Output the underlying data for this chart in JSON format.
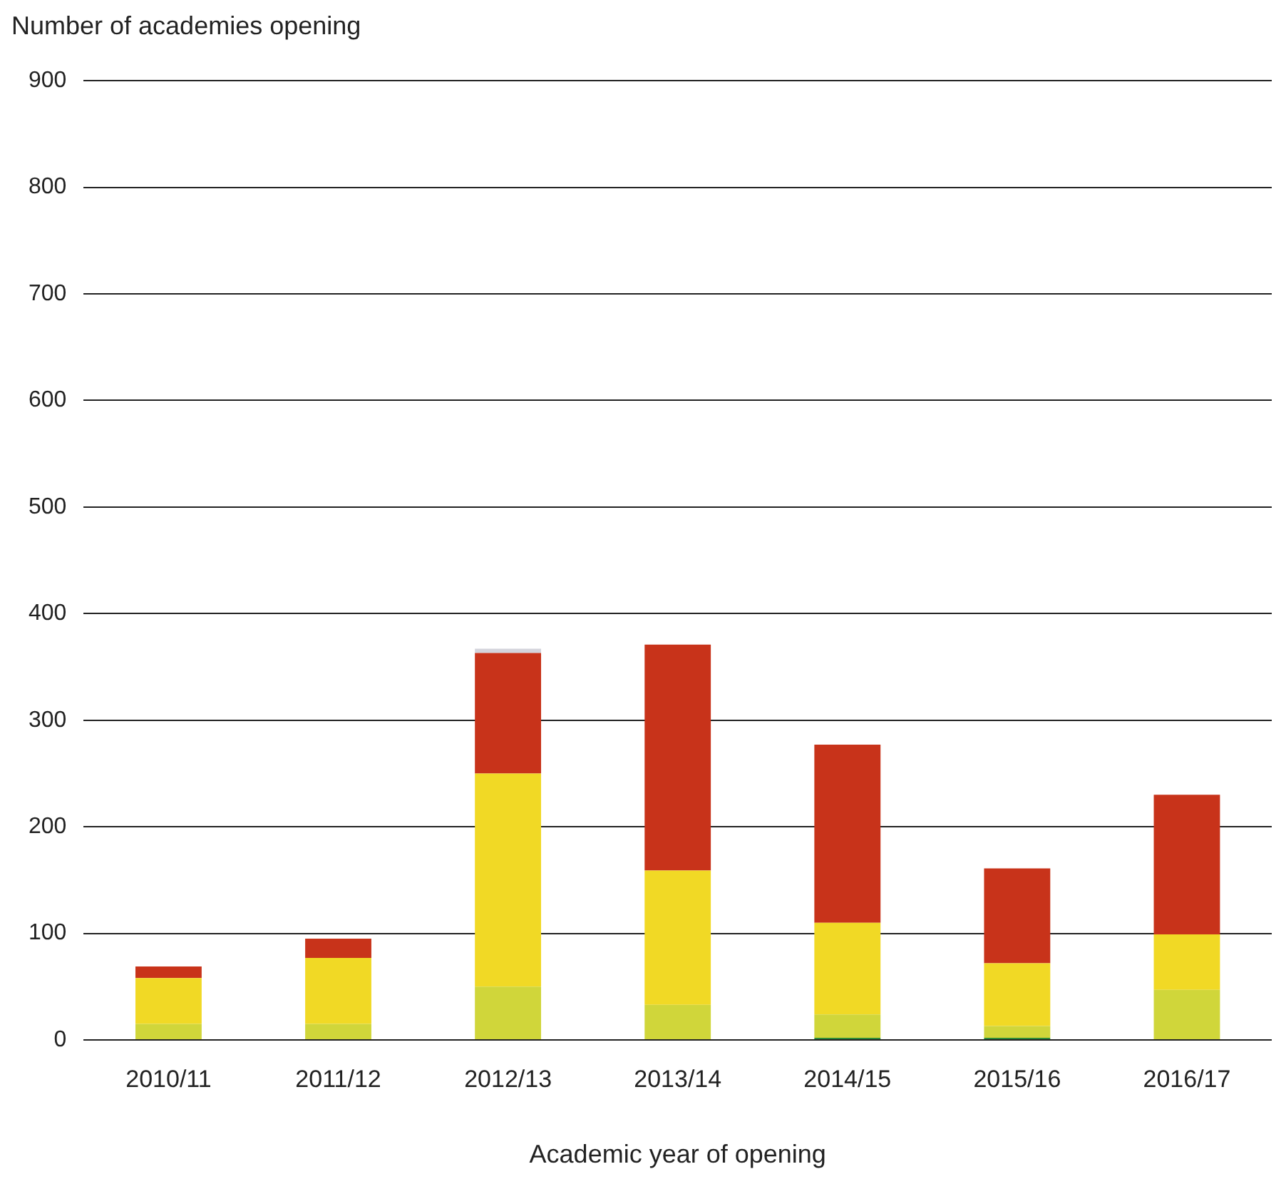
{
  "chart_data": {
    "type": "bar",
    "ylabel": "Number of academies opening",
    "xlabel": "Academic year of opening",
    "categories": [
      "2010/11",
      "2011/12",
      "2012/13",
      "2013/14",
      "2014/15",
      "2015/16",
      "2016/17"
    ],
    "stacked": true,
    "ylim": [
      0,
      900
    ],
    "yticks": [
      0,
      100,
      200,
      300,
      400,
      500,
      600,
      700,
      800,
      900
    ],
    "grid": "y",
    "legend": false,
    "series": [
      {
        "color": "#2e8b3a",
        "values": [
          0,
          0,
          0,
          null,
          2,
          2,
          0
        ]
      },
      {
        "color": "#d0d63a",
        "values": [
          15,
          15,
          50,
          33,
          22,
          11,
          47
        ]
      },
      {
        "color": "#f1d925",
        "values": [
          43,
          62,
          200,
          126,
          86,
          59,
          52
        ]
      },
      {
        "color": "#c8331a",
        "values": [
          11,
          18,
          113,
          212,
          167,
          89,
          131
        ]
      },
      {
        "color": "#d4d4dc",
        "values": [
          null,
          null,
          4,
          0,
          0,
          0,
          0
        ]
      }
    ]
  }
}
